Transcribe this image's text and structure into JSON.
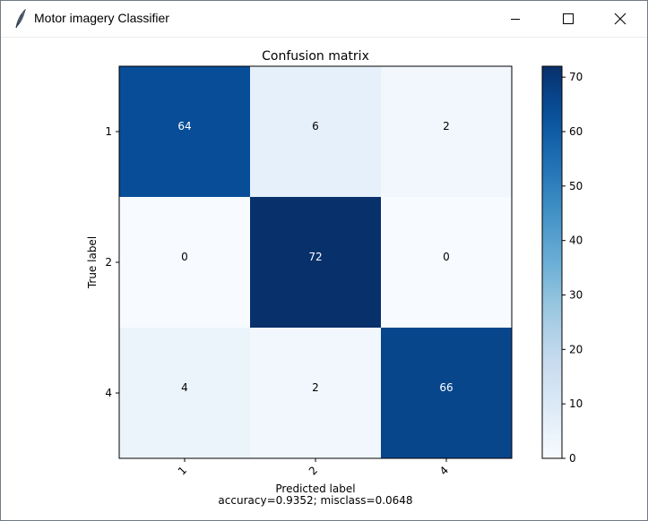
{
  "window": {
    "title": "Motor imagery Classifier",
    "icon": "feather-icon",
    "controls": [
      "minimize-icon",
      "maximize-icon",
      "close-icon"
    ]
  },
  "chart_data": {
    "type": "heatmap",
    "title": "Confusion matrix",
    "xlabel": "Predicted label",
    "xlabel_note": "accuracy=0.9352; misclass=0.0648",
    "ylabel": "True label",
    "x_categories": [
      "1",
      "2",
      "4"
    ],
    "y_categories": [
      "1",
      "2",
      "4"
    ],
    "matrix": [
      [
        64,
        6,
        2
      ],
      [
        0,
        72,
        0
      ],
      [
        4,
        2,
        66
      ]
    ],
    "colormap": "Blues",
    "value_range": [
      0,
      72
    ],
    "colorbar_ticks": [
      0,
      10,
      20,
      30,
      40,
      50,
      60,
      70
    ],
    "text_colors": {
      "light": "#ffffff",
      "dark": "#000000"
    },
    "x_tick_rotation": 45,
    "grid": false
  }
}
